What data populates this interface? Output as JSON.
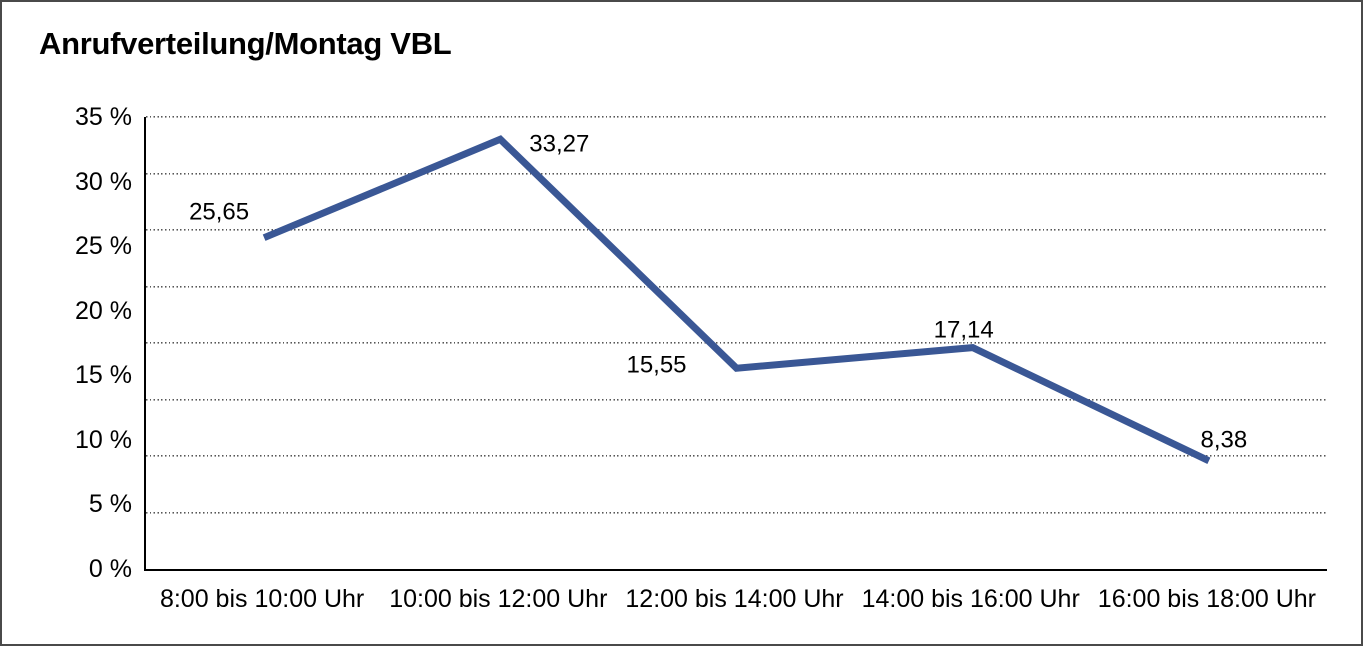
{
  "chart_data": {
    "type": "line",
    "title": "Anrufverteilung/Montag VBL",
    "categories": [
      "8:00 bis 10:00 Uhr",
      "10:00 bis 12:00 Uhr",
      "12:00 bis 14:00 Uhr",
      "14:00 bis 16:00 Uhr",
      "16:00 bis 18:00 Uhr"
    ],
    "series": [
      {
        "name": "Anrufverteilung Montag VBL",
        "values": [
          25.65,
          33.27,
          15.55,
          17.14,
          8.38
        ],
        "value_labels": [
          "25,65",
          "33,27",
          "15,55",
          "17,14",
          "8,38"
        ]
      }
    ],
    "xlabel": "",
    "ylabel": "",
    "ylim": [
      0,
      35
    ],
    "y_tick_labels": [
      "35 %",
      "30 %",
      "25 %",
      "20 %",
      "15 %",
      "10 %",
      "5 %",
      "0 %"
    ],
    "y_tick_suffix": " %",
    "decimal_separator": ",",
    "grid": "horizontal-dotted",
    "gridline_count": 8,
    "legend": "none",
    "line_color": "#3A5795",
    "text_color": "#000000",
    "frame_color": "#4a4a4a"
  }
}
